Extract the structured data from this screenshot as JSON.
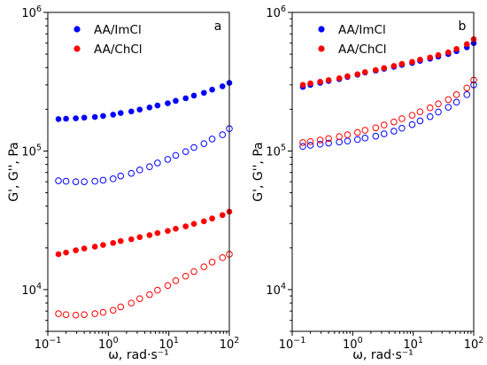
{
  "chart_data": [
    {
      "type": "scatter",
      "panel_label": "a",
      "xlabel": "ω, rad·s⁻¹",
      "ylabel": "G', G'', Pa",
      "xscale": "log",
      "yscale": "log",
      "xlim": [
        0.1,
        100
      ],
      "ylim": [
        5000,
        1000000
      ],
      "legend_placement": "top-left",
      "x": [
        0.15,
        0.2,
        0.29,
        0.4,
        0.6,
        0.82,
        1.2,
        1.6,
        2.4,
        3.3,
        4.8,
        6.5,
        9.6,
        13,
        19,
        26,
        38,
        52,
        77,
        100
      ],
      "series": [
        {
          "name": "AA/ImCl",
          "color": "#0000ff",
          "marker": "filled",
          "modulus": "G'",
          "values": [
            170000,
            171000,
            172000,
            174000,
            176000,
            179000,
            183000,
            188000,
            193000,
            199000,
            206000,
            213000,
            221000,
            230000,
            240000,
            251000,
            263000,
            277000,
            293000,
            310000
          ]
        },
        {
          "name": "",
          "color": "#0000ff",
          "marker": "open",
          "modulus": "G''",
          "values": [
            61000,
            60500,
            60000,
            60000,
            60500,
            61500,
            63000,
            66000,
            69000,
            73000,
            77000,
            82000,
            87000,
            93000,
            99000,
            106000,
            113000,
            122000,
            131000,
            145000
          ]
        },
        {
          "name": "AA/ChCl",
          "color": "#ff0000",
          "marker": "filled",
          "modulus": "G'",
          "values": [
            18000,
            18500,
            19200,
            19800,
            20400,
            21000,
            21700,
            22400,
            23100,
            23900,
            24700,
            25600,
            26500,
            27500,
            28600,
            29800,
            31100,
            32600,
            34500,
            36500
          ]
        },
        {
          "name": "",
          "color": "#ff0000",
          "marker": "open",
          "modulus": "G''",
          "values": [
            6700,
            6600,
            6550,
            6600,
            6700,
            6850,
            7100,
            7500,
            8000,
            8600,
            9200,
            9900,
            10700,
            11600,
            12500,
            13500,
            14600,
            15800,
            17000,
            18000
          ]
        }
      ]
    },
    {
      "type": "scatter",
      "panel_label": "b",
      "xlabel": "ω, rad·s⁻¹",
      "ylabel": "G', G'', Pa",
      "xscale": "log",
      "yscale": "log",
      "xlim": [
        0.1,
        100
      ],
      "ylim": [
        5000,
        1000000
      ],
      "legend_placement": "top-left",
      "x": [
        0.15,
        0.2,
        0.29,
        0.4,
        0.6,
        0.82,
        1.2,
        1.6,
        2.4,
        3.3,
        4.8,
        6.5,
        9.6,
        13,
        19,
        26,
        38,
        52,
        77,
        100
      ],
      "series": [
        {
          "name": "AA/ImCl",
          "color": "#0000ff",
          "marker": "filled",
          "modulus": "G'",
          "values": [
            290000,
            300000,
            310000,
            320000,
            330000,
            342000,
            355000,
            368000,
            380000,
            392000,
            405000,
            418000,
            432000,
            447000,
            463000,
            480000,
            500000,
            525000,
            560000,
            600000
          ]
        },
        {
          "name": "",
          "color": "#0000ff",
          "marker": "open",
          "modulus": "G''",
          "values": [
            108000,
            110000,
            112000,
            114000,
            116000,
            118000,
            121000,
            124000,
            128000,
            133000,
            139000,
            146000,
            155000,
            165000,
            177000,
            191000,
            207000,
            225000,
            255000,
            300000
          ]
        },
        {
          "name": "AA/ChCl",
          "color": "#ff0000",
          "marker": "filled",
          "modulus": "G'",
          "values": [
            300000,
            308000,
            316000,
            325000,
            335000,
            346000,
            358000,
            371000,
            384000,
            397000,
            411000,
            425000,
            440000,
            456000,
            473000,
            492000,
            515000,
            545000,
            590000,
            640000
          ]
        },
        {
          "name": "",
          "color": "#ff0000",
          "marker": "open",
          "modulus": "G''",
          "values": [
            115000,
            117000,
            120000,
            123000,
            127000,
            131000,
            136000,
            141000,
            147000,
            154000,
            162000,
            171000,
            181000,
            192000,
            205000,
            219000,
            235000,
            255000,
            285000,
            325000
          ]
        }
      ]
    }
  ],
  "x_tick_labels": [
    {
      "base": "10",
      "exp": "−1"
    },
    {
      "base": "10",
      "exp": "0"
    },
    {
      "base": "10",
      "exp": "1"
    },
    {
      "base": "10",
      "exp": "2"
    }
  ],
  "y_tick_labels": [
    {
      "base": "10",
      "exp": "4"
    },
    {
      "base": "10",
      "exp": "5"
    },
    {
      "base": "10",
      "exp": "6"
    }
  ]
}
